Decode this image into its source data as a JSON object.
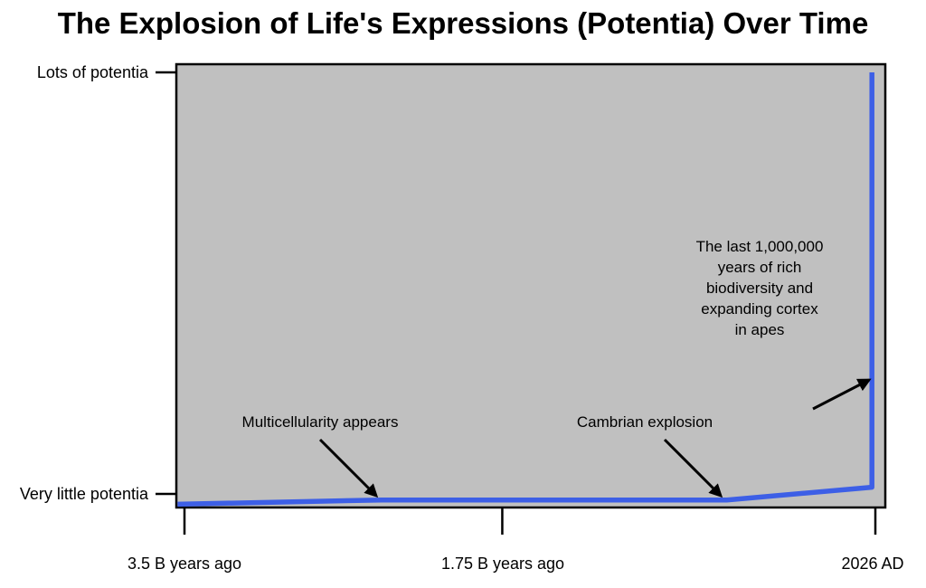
{
  "chart_data": {
    "type": "line",
    "title": "The Explosion of Life's Expressions (Potentia) Over Time",
    "xlabel": "",
    "ylabel": "",
    "grid": false,
    "x_tick_labels": [
      "3.5 B years ago",
      "1.75 B years ago",
      "2026 AD"
    ],
    "y_tick_labels": [
      "Very little potentia",
      "Lots of potentia"
    ],
    "xlim": [
      0,
      100
    ],
    "ylim": [
      0,
      100
    ],
    "x_tick_values": [
      0,
      46,
      100
    ],
    "y_tick_values": [
      0,
      100
    ],
    "series": [
      {
        "color": "#3d5fe6",
        "x": [
          -1,
          28.5,
          78.5,
          99.5,
          99.5,
          99.5
        ],
        "y": [
          -2,
          -1,
          -1,
          2,
          29,
          100
        ]
      }
    ],
    "annotations": [
      {
        "lines": [
          "Multicellularity appears"
        ],
        "point": [
          28.5,
          -1
        ]
      },
      {
        "lines": [
          "Cambrian explosion"
        ],
        "point": [
          78.5,
          -1
        ]
      },
      {
        "lines": [
          "The last 1,000,000",
          "years of rich",
          "biodiversity and",
          "expanding cortex",
          "in apes"
        ],
        "point": [
          99.5,
          29
        ]
      }
    ],
    "colors": {
      "plot_background": "#c0c0c0",
      "line": "#3d5fe6",
      "frame": "#000000"
    }
  }
}
